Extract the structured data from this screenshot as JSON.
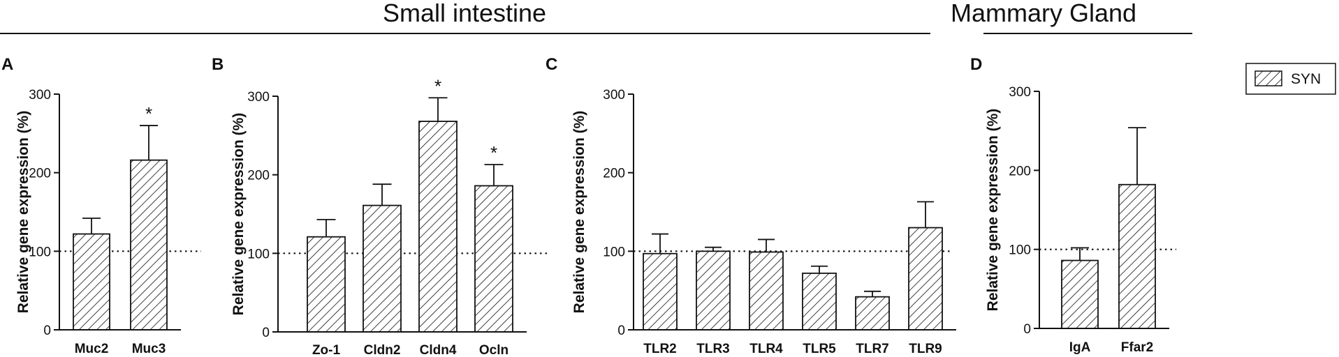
{
  "header": {
    "left_title": "Small intestine",
    "right_title": "Mammary Gland"
  },
  "legend": {
    "label": "SYN"
  },
  "colors": {
    "ink": "#111111",
    "bar_fill": "#ffffff"
  },
  "chart_data": [
    {
      "panel": "A",
      "type": "bar",
      "categories": [
        "Muc2",
        "Muc3"
      ],
      "series": [
        {
          "name": "SYN",
          "values": [
            122,
            216
          ],
          "errors": [
            20,
            44
          ]
        }
      ],
      "significance": [
        "",
        "*"
      ],
      "ylabel": "Relative gene expression (%)",
      "yticks": [
        "0",
        "100",
        "200",
        "300"
      ],
      "ylim": [
        0,
        300
      ],
      "reference_line": 100
    },
    {
      "panel": "B",
      "type": "bar",
      "categories": [
        "Zo-1",
        "Cldn2",
        "Cldn4",
        "Ocln"
      ],
      "series": [
        {
          "name": "SYN",
          "values": [
            121,
            161,
            268,
            186
          ],
          "errors": [
            22,
            27,
            30,
            27
          ]
        }
      ],
      "significance": [
        "",
        "",
        "*",
        "*"
      ],
      "ylabel": "Relative gene expression (%)",
      "yticks": [
        "0",
        "100",
        "200",
        "300"
      ],
      "ylim": [
        0,
        300
      ],
      "reference_line": 100
    },
    {
      "panel": "C",
      "type": "bar",
      "categories": [
        "TLR2",
        "TLR3",
        "TLR4",
        "TLR5",
        "TLR7",
        "TLR9"
      ],
      "series": [
        {
          "name": "SYN",
          "values": [
            97,
            100,
            99,
            72,
            42,
            130
          ],
          "errors": [
            25,
            5,
            16,
            9,
            7,
            33
          ]
        }
      ],
      "significance": [
        "",
        "",
        "",
        "",
        "",
        ""
      ],
      "ylabel": "Relative gene expression (%)",
      "yticks": [
        "0",
        "100",
        "200",
        "300"
      ],
      "ylim": [
        0,
        300
      ],
      "reference_line": 100
    },
    {
      "panel": "D",
      "type": "bar",
      "categories": [
        "IgA",
        "Ffar2"
      ],
      "series": [
        {
          "name": "SYN",
          "values": [
            86,
            182
          ],
          "errors": [
            16,
            72
          ]
        }
      ],
      "significance": [
        "",
        ""
      ],
      "ylabel": "Relative gene expression (%)",
      "yticks": [
        "0",
        "100",
        "200",
        "300"
      ],
      "ylim": [
        0,
        300
      ],
      "reference_line": 100
    }
  ]
}
